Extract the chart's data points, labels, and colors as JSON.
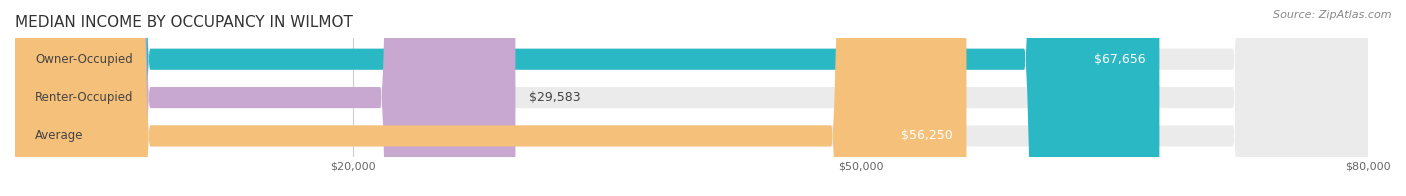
{
  "title": "MEDIAN INCOME BY OCCUPANCY IN WILMOT",
  "source": "Source: ZipAtlas.com",
  "categories": [
    "Owner-Occupied",
    "Renter-Occupied",
    "Average"
  ],
  "values": [
    67656,
    29583,
    56250
  ],
  "labels": [
    "$67,656",
    "$29,583",
    "$56,250"
  ],
  "bar_colors": [
    "#2ab8c5",
    "#c8a8d0",
    "#f5c07a"
  ],
  "bar_background": "#ebebeb",
  "xlim": [
    0,
    80000
  ],
  "xticks": [
    0,
    20000,
    50000,
    80000
  ],
  "xtick_labels": [
    "$20,000",
    "$50,000",
    "$80,000"
  ],
  "bar_height": 0.55,
  "label_fontsize": 9,
  "title_fontsize": 11,
  "source_fontsize": 8,
  "category_fontsize": 8.5
}
